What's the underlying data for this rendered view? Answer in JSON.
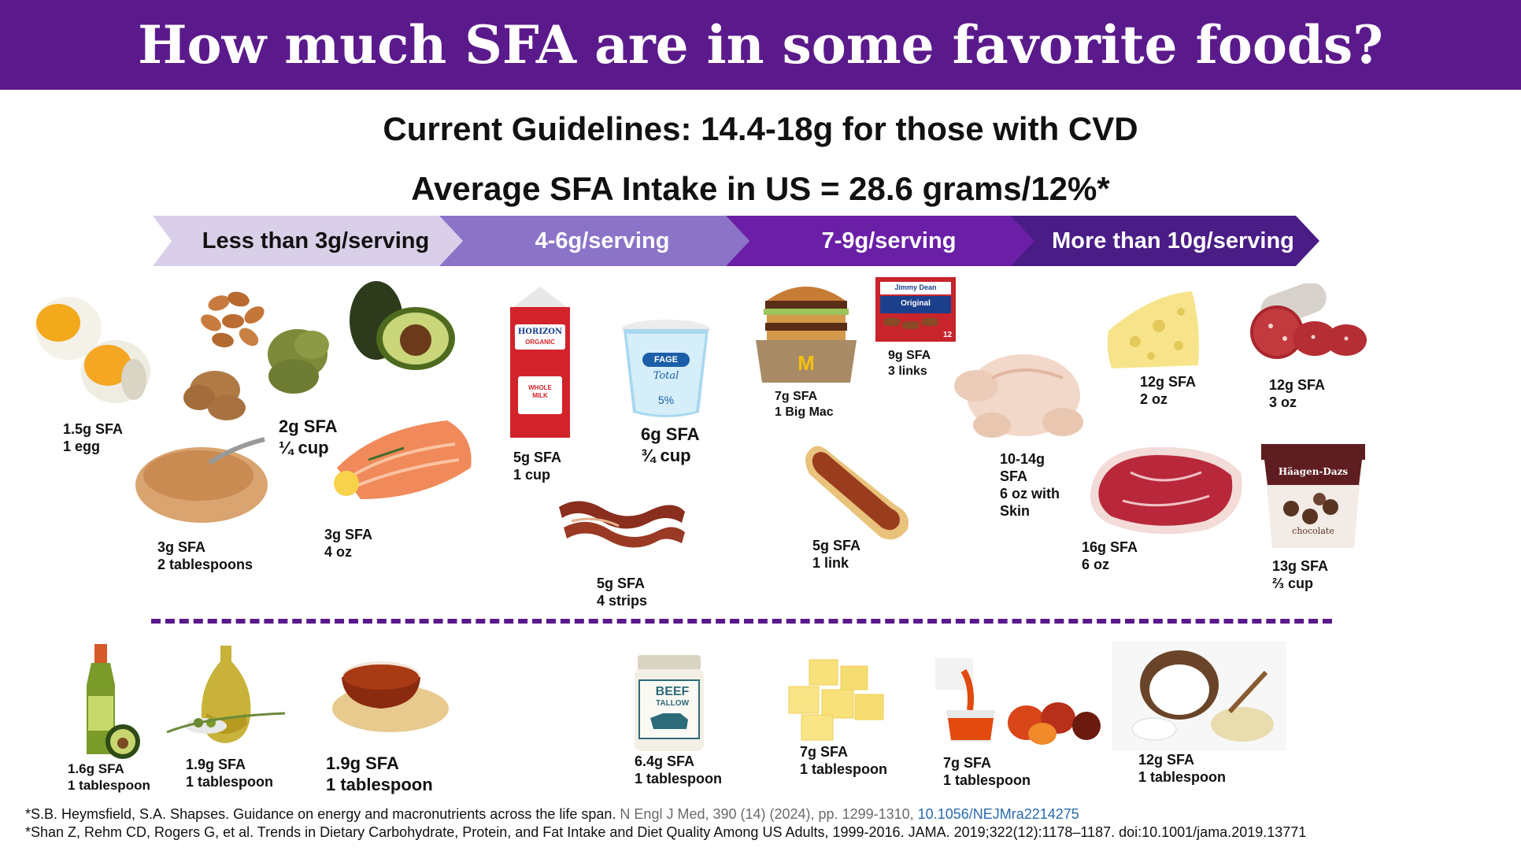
{
  "title": "How much SFA are in some favorite foods?",
  "guidelines": "Current Guidelines:  14.4-18g for those with CVD",
  "average_intake": "Average SFA Intake in US = 28.6 grams/12%*",
  "categories": [
    {
      "label": "Less than 3g/serving",
      "color": "#d9cfe9",
      "text_color": "#111111"
    },
    {
      "label": "4-6g/serving",
      "color": "#8b73c8",
      "text_color": "#ffffff"
    },
    {
      "label": "7-9g/serving",
      "color": "#6a1fa6",
      "text_color": "#ffffff"
    },
    {
      "label": "More than 10g/serving",
      "color": "#4a1c86",
      "text_color": "#ffffff"
    }
  ],
  "foods": {
    "egg": {
      "sfa": "1.5g SFA",
      "serving": "1 egg"
    },
    "nuts": {
      "sfa": "2g SFA",
      "serving": "¼ cup"
    },
    "peanut_butter": {
      "sfa": "3g SFA",
      "serving": "2 tablespoons"
    },
    "salmon": {
      "sfa": "3g SFA",
      "serving": "4 oz"
    },
    "milk": {
      "sfa": "5g SFA",
      "serving": "1 cup",
      "brand": "HORIZON",
      "sub": "ORGANIC",
      "desc": "WHOLE MILK"
    },
    "yogurt": {
      "sfa": "6g SFA",
      "serving": "¾ cup",
      "brand": "FAGE",
      "sub": "Total",
      "pct": "5%"
    },
    "bacon": {
      "sfa": "5g SFA",
      "serving": "4 strips"
    },
    "big_mac": {
      "sfa": "7g SFA",
      "serving": "1 Big Mac"
    },
    "sausage": {
      "sfa": "9g SFA",
      "serving": "3 links",
      "brand": "Jimmy Dean",
      "sub": "Original",
      "count": "12"
    },
    "hot_dog": {
      "sfa": "5g SFA",
      "serving": "1 link"
    },
    "chicken": {
      "sfa": "10-14g",
      "sfa2": "SFA",
      "serving": "6 oz with",
      "serving2": "Skin"
    },
    "cheese": {
      "sfa": "12g SFA",
      "serving": "2 oz"
    },
    "salami": {
      "sfa": "12g SFA",
      "serving": "3 oz"
    },
    "steak": {
      "sfa": "16g SFA",
      "serving": "6 oz"
    },
    "ice_cream": {
      "sfa": "13g SFA",
      "serving": "⅔ cup",
      "brand": "Häagen-Dazs",
      "flavor": "chocolate"
    }
  },
  "oils": [
    {
      "sfa": "1.6g SFA",
      "serving": "1 tablespoon"
    },
    {
      "sfa": "1.9g SFA",
      "serving": "1 tablespoon"
    },
    {
      "sfa": "1.9g SFA",
      "serving": "1 tablespoon"
    },
    {
      "sfa": "6.4g SFA",
      "serving": "1 tablespoon",
      "brand": "BEEF",
      "sub": "TALLOW"
    },
    {
      "sfa": "7g SFA",
      "serving": "1 tablespoon"
    },
    {
      "sfa": "7g SFA",
      "serving": "1 tablespoon"
    },
    {
      "sfa": "12g SFA",
      "serving": "1 tablespoon"
    }
  ],
  "references": {
    "ref1_main": "*S.B. Heymsfield, S.A. Shapses. Guidance on energy and macronutrients across the life span.",
    "ref1_journal": "N Engl J Med, 390 (14) (2024), pp. 1299-1310,",
    "ref1_doi": "10.1056/NEJMra2214275",
    "ref2": "*Shan Z, Rehm CD, Rogers G, et al. Trends in Dietary Carbohydrate, Protein, and Fat Intake and Diet Quality Among US Adults, 1999-2016. JAMA. 2019;322(12):1178–1187. doi:10.1001/jama.2019.13771"
  }
}
